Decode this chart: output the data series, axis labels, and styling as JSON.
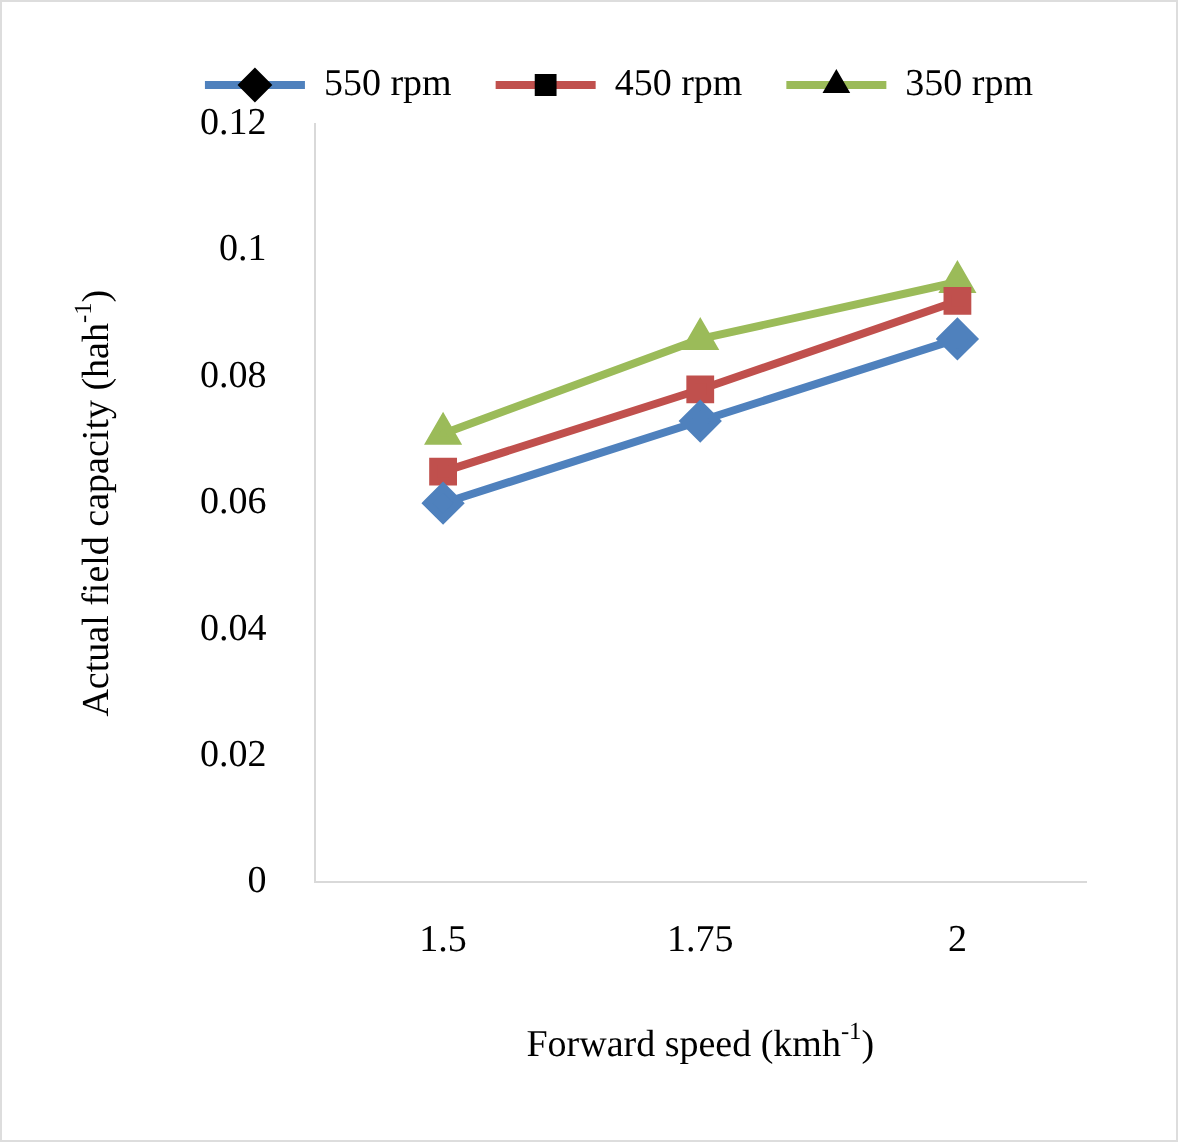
{
  "chart_data": {
    "type": "line",
    "xlabel": "Forward speed (kmh$^{-1}$)",
    "ylabel": "Actual field capacity (hah$^{-1}$)",
    "categories": [
      "1.5",
      "1.75",
      "2"
    ],
    "series": [
      {
        "name": "550 rpm",
        "color": "#4f81bd",
        "marker": "diamond",
        "values": [
          0.06,
          0.073,
          0.086
        ]
      },
      {
        "name": "450 rpm",
        "color": "#c0504d",
        "marker": "square",
        "values": [
          0.065,
          0.078,
          0.092
        ]
      },
      {
        "name": "350 rpm",
        "color": "#9bbb59",
        "marker": "triangle",
        "values": [
          0.071,
          0.086,
          0.095
        ]
      }
    ],
    "ylim": [
      0,
      0.12
    ],
    "yticks": [
      0,
      0.02,
      0.04,
      0.06,
      0.08,
      0.1,
      0.12
    ],
    "grid": false,
    "legend": "top",
    "line_style": "solid"
  }
}
